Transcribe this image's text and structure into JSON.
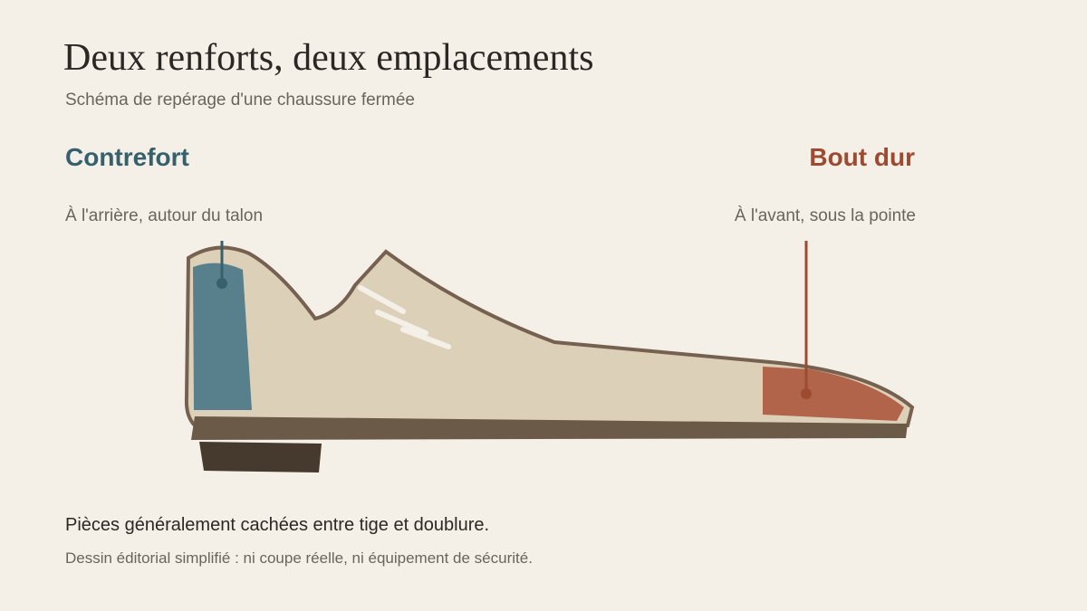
{
  "header": {
    "title": "Deux renforts, deux emplacements",
    "subtitle": "Schéma de repérage d'une chaussure fermée"
  },
  "parts": [
    {
      "label": "Contrefort",
      "description": "À l'arrière, autour du talon"
    },
    {
      "label": "Bout dur",
      "description": "À l'avant, sous la pointe"
    }
  ],
  "footer": {
    "note": "Pièces généralement cachées entre tige et doublure.",
    "caption": "Dessin éditorial simplifié : ni coupe réelle, ni équipement de sécurité."
  }
}
